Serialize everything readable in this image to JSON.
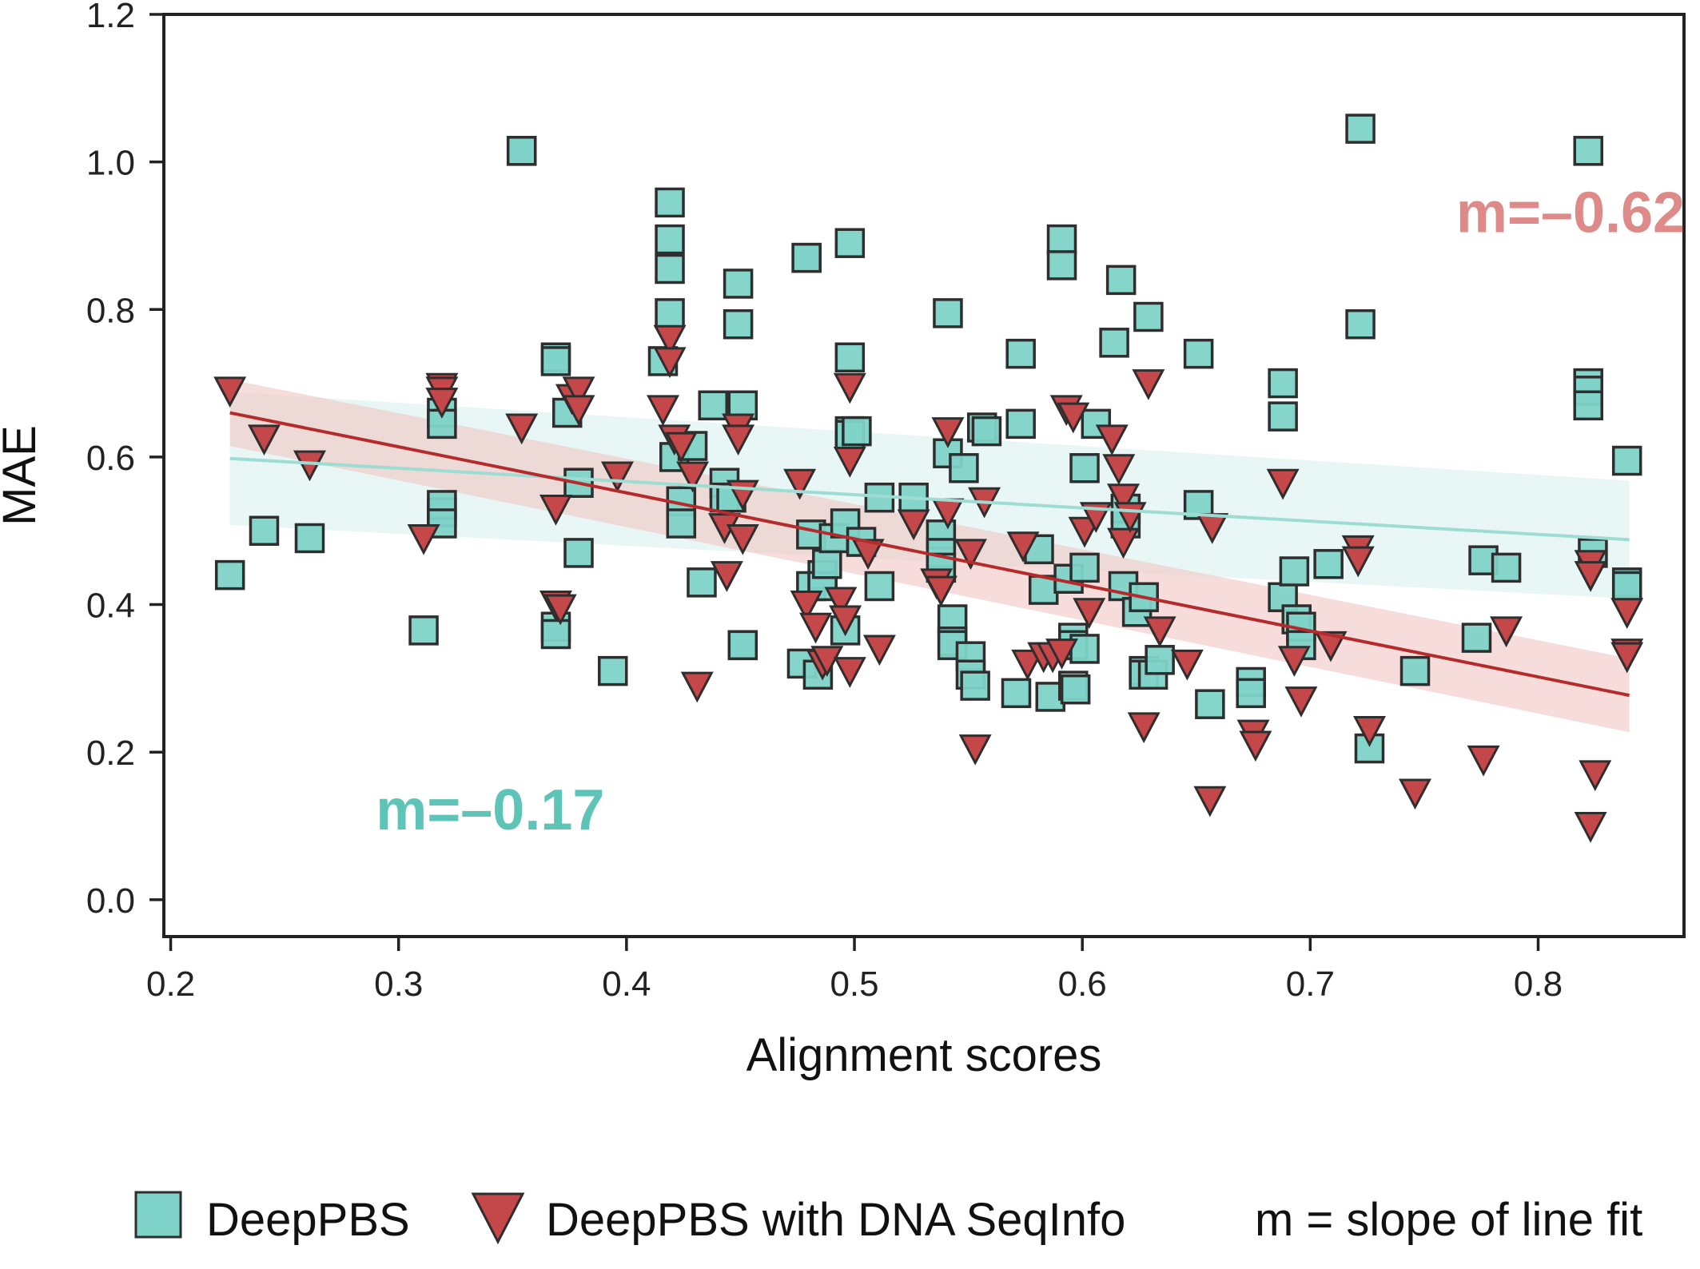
{
  "chart_data": {
    "type": "scatter",
    "xlabel": "Alignment scores",
    "ylabel": "MAE",
    "xlim": [
      0.197,
      0.864
    ],
    "ylim": [
      -0.05,
      1.2
    ],
    "xticks": [
      0.2,
      0.3,
      0.4,
      0.5,
      0.6,
      0.7,
      0.8
    ],
    "xtick_labels": [
      "0.2",
      "0.3",
      "0.4",
      "0.5",
      "0.6",
      "0.7",
      "0.8"
    ],
    "yticks": [
      0.0,
      0.2,
      0.4,
      0.6,
      0.8,
      1.0,
      1.2
    ],
    "ytick_labels": [
      "0.0",
      "0.2",
      "0.4",
      "0.6",
      "0.8",
      "1.0",
      "1.2"
    ],
    "grid": false,
    "legend_position": "bottom",
    "legend_note": "m = slope of line fit",
    "annotations": [
      {
        "text": "m=–0.62",
        "x": 0.764,
        "y": 0.905,
        "color": "#de8a88"
      },
      {
        "text": "m=–0.17",
        "x": 0.29,
        "y": 0.095,
        "color": "#5fc4b8"
      }
    ],
    "series": [
      {
        "name": "DeepPBS",
        "marker": "square",
        "color": "#7fd3c8",
        "edge_color": "#2e2e2e",
        "fit": {
          "x": [
            0.226,
            0.84
          ],
          "y": [
            0.598,
            0.488
          ],
          "color": "#9ddcd3",
          "band_color": "#d6f0ec",
          "band_halfwidth": [
            0.09,
            0.08
          ]
        },
        "points": [
          [
            0.226,
            0.44
          ],
          [
            0.241,
            0.5
          ],
          [
            0.261,
            0.49
          ],
          [
            0.311,
            0.365
          ],
          [
            0.319,
            0.66
          ],
          [
            0.319,
            0.645
          ],
          [
            0.319,
            0.525
          ],
          [
            0.319,
            0.535
          ],
          [
            0.319,
            0.51
          ],
          [
            0.354,
            1.015
          ],
          [
            0.354,
            1.015
          ],
          [
            0.369,
            0.735
          ],
          [
            0.369,
            0.73
          ],
          [
            0.369,
            0.37
          ],
          [
            0.369,
            0.36
          ],
          [
            0.374,
            0.66
          ],
          [
            0.379,
            0.565
          ],
          [
            0.379,
            0.47
          ],
          [
            0.394,
            0.31
          ],
          [
            0.419,
            0.945
          ],
          [
            0.419,
            0.895
          ],
          [
            0.419,
            0.855
          ],
          [
            0.419,
            0.795
          ],
          [
            0.416,
            0.73
          ],
          [
            0.421,
            0.6
          ],
          [
            0.424,
            0.54
          ],
          [
            0.424,
            0.51
          ],
          [
            0.429,
            0.615
          ],
          [
            0.433,
            0.43
          ],
          [
            0.438,
            0.67
          ],
          [
            0.443,
            0.565
          ],
          [
            0.443,
            0.545
          ],
          [
            0.446,
            0.545
          ],
          [
            0.449,
            0.835
          ],
          [
            0.449,
            0.78
          ],
          [
            0.451,
            0.67
          ],
          [
            0.451,
            0.345
          ],
          [
            0.451,
            0.345
          ],
          [
            0.479,
            0.87
          ],
          [
            0.479,
            0.87
          ],
          [
            0.477,
            0.32
          ],
          [
            0.481,
            0.495
          ],
          [
            0.481,
            0.425
          ],
          [
            0.484,
            0.305
          ],
          [
            0.486,
            0.44
          ],
          [
            0.486,
            0.425
          ],
          [
            0.488,
            0.455
          ],
          [
            0.491,
            0.49
          ],
          [
            0.496,
            0.51
          ],
          [
            0.496,
            0.365
          ],
          [
            0.498,
            0.89
          ],
          [
            0.498,
            0.735
          ],
          [
            0.498,
            0.635
          ],
          [
            0.498,
            0.63
          ],
          [
            0.501,
            0.635
          ],
          [
            0.503,
            0.485
          ],
          [
            0.511,
            0.545
          ],
          [
            0.511,
            0.425
          ],
          [
            0.526,
            0.545
          ],
          [
            0.538,
            0.495
          ],
          [
            0.538,
            0.47
          ],
          [
            0.538,
            0.45
          ],
          [
            0.541,
            0.795
          ],
          [
            0.541,
            0.605
          ],
          [
            0.543,
            0.38
          ],
          [
            0.543,
            0.35
          ],
          [
            0.543,
            0.345
          ],
          [
            0.548,
            0.585
          ],
          [
            0.551,
            0.33
          ],
          [
            0.551,
            0.305
          ],
          [
            0.553,
            0.29
          ],
          [
            0.556,
            0.64
          ],
          [
            0.558,
            0.635
          ],
          [
            0.571,
            0.28
          ],
          [
            0.573,
            0.74
          ],
          [
            0.573,
            0.645
          ],
          [
            0.581,
            0.475
          ],
          [
            0.583,
            0.42
          ],
          [
            0.586,
            0.275
          ],
          [
            0.591,
            0.895
          ],
          [
            0.591,
            0.86
          ],
          [
            0.594,
            0.435
          ],
          [
            0.596,
            0.355
          ],
          [
            0.596,
            0.345
          ],
          [
            0.596,
            0.29
          ],
          [
            0.597,
            0.285
          ],
          [
            0.601,
            0.585
          ],
          [
            0.601,
            0.45
          ],
          [
            0.601,
            0.34
          ],
          [
            0.606,
            0.645
          ],
          [
            0.614,
            0.755
          ],
          [
            0.617,
            0.84
          ],
          [
            0.618,
            0.425
          ],
          [
            0.619,
            0.53
          ],
          [
            0.619,
            0.51
          ],
          [
            0.624,
            0.39
          ],
          [
            0.627,
            0.41
          ],
          [
            0.627,
            0.31
          ],
          [
            0.627,
            0.305
          ],
          [
            0.629,
            0.79
          ],
          [
            0.631,
            0.305
          ],
          [
            0.634,
            0.325
          ],
          [
            0.651,
            0.74
          ],
          [
            0.651,
            0.535
          ],
          [
            0.656,
            0.265
          ],
          [
            0.674,
            0.295
          ],
          [
            0.674,
            0.28
          ],
          [
            0.688,
            0.7
          ],
          [
            0.688,
            0.655
          ],
          [
            0.688,
            0.41
          ],
          [
            0.693,
            0.445
          ],
          [
            0.694,
            0.38
          ],
          [
            0.696,
            0.37
          ],
          [
            0.696,
            0.345
          ],
          [
            0.708,
            0.455
          ],
          [
            0.722,
            1.045
          ],
          [
            0.722,
            0.78
          ],
          [
            0.726,
            0.205
          ],
          [
            0.746,
            0.31
          ],
          [
            0.773,
            0.355
          ],
          [
            0.776,
            0.46
          ],
          [
            0.786,
            0.45
          ],
          [
            0.822,
            1.015
          ],
          [
            0.822,
            0.7
          ],
          [
            0.822,
            0.69
          ],
          [
            0.822,
            0.67
          ],
          [
            0.824,
            0.47
          ],
          [
            0.839,
            0.595
          ],
          [
            0.839,
            0.43
          ],
          [
            0.839,
            0.425
          ]
        ]
      },
      {
        "name": "DeepPBS with DNA SeqInfo",
        "marker": "triangle_down",
        "color": "#c4474a",
        "edge_color": "#2e2e2e",
        "fit": {
          "x": [
            0.226,
            0.84
          ],
          "y": [
            0.66,
            0.277
          ],
          "color": "#b52b2b",
          "band_color": "#f0c4c2",
          "band_halfwidth": [
            0.045,
            0.05
          ]
        },
        "points": [
          [
            0.226,
            0.69
          ],
          [
            0.241,
            0.625
          ],
          [
            0.261,
            0.59
          ],
          [
            0.311,
            0.49
          ],
          [
            0.319,
            0.695
          ],
          [
            0.319,
            0.69
          ],
          [
            0.319,
            0.675
          ],
          [
            0.354,
            0.64
          ],
          [
            0.369,
            0.53
          ],
          [
            0.369,
            0.4
          ],
          [
            0.371,
            0.395
          ],
          [
            0.376,
            0.68
          ],
          [
            0.379,
            0.69
          ],
          [
            0.379,
            0.665
          ],
          [
            0.396,
            0.575
          ],
          [
            0.416,
            0.665
          ],
          [
            0.419,
            0.76
          ],
          [
            0.419,
            0.73
          ],
          [
            0.421,
            0.625
          ],
          [
            0.424,
            0.615
          ],
          [
            0.429,
            0.575
          ],
          [
            0.431,
            0.29
          ],
          [
            0.443,
            0.505
          ],
          [
            0.444,
            0.44
          ],
          [
            0.449,
            0.64
          ],
          [
            0.449,
            0.625
          ],
          [
            0.451,
            0.55
          ],
          [
            0.451,
            0.49
          ],
          [
            0.476,
            0.565
          ],
          [
            0.479,
            0.4
          ],
          [
            0.483,
            0.37
          ],
          [
            0.486,
            0.32
          ],
          [
            0.488,
            0.325
          ],
          [
            0.494,
            0.405
          ],
          [
            0.496,
            0.38
          ],
          [
            0.498,
            0.695
          ],
          [
            0.498,
            0.595
          ],
          [
            0.498,
            0.31
          ],
          [
            0.506,
            0.47
          ],
          [
            0.511,
            0.34
          ],
          [
            0.526,
            0.51
          ],
          [
            0.536,
            0.43
          ],
          [
            0.538,
            0.42
          ],
          [
            0.541,
            0.635
          ],
          [
            0.541,
            0.525
          ],
          [
            0.551,
            0.47
          ],
          [
            0.553,
            0.205
          ],
          [
            0.557,
            0.54
          ],
          [
            0.574,
            0.48
          ],
          [
            0.576,
            0.32
          ],
          [
            0.583,
            0.33
          ],
          [
            0.587,
            0.33
          ],
          [
            0.591,
            0.335
          ],
          [
            0.593,
            0.665
          ],
          [
            0.596,
            0.655
          ],
          [
            0.601,
            0.5
          ],
          [
            0.603,
            0.39
          ],
          [
            0.606,
            0.52
          ],
          [
            0.613,
            0.625
          ],
          [
            0.616,
            0.585
          ],
          [
            0.618,
            0.545
          ],
          [
            0.618,
            0.485
          ],
          [
            0.621,
            0.52
          ],
          [
            0.627,
            0.235
          ],
          [
            0.629,
            0.7
          ],
          [
            0.634,
            0.365
          ],
          [
            0.646,
            0.32
          ],
          [
            0.656,
            0.135
          ],
          [
            0.657,
            0.505
          ],
          [
            0.675,
            0.225
          ],
          [
            0.676,
            0.21
          ],
          [
            0.688,
            0.565
          ],
          [
            0.693,
            0.325
          ],
          [
            0.696,
            0.27
          ],
          [
            0.709,
            0.345
          ],
          [
            0.721,
            0.475
          ],
          [
            0.721,
            0.46
          ],
          [
            0.726,
            0.23
          ],
          [
            0.746,
            0.145
          ],
          [
            0.776,
            0.19
          ],
          [
            0.786,
            0.365
          ],
          [
            0.823,
            0.455
          ],
          [
            0.823,
            0.44
          ],
          [
            0.823,
            0.1
          ],
          [
            0.825,
            0.17
          ],
          [
            0.839,
            0.39
          ],
          [
            0.839,
            0.335
          ],
          [
            0.839,
            0.33
          ]
        ]
      }
    ]
  }
}
